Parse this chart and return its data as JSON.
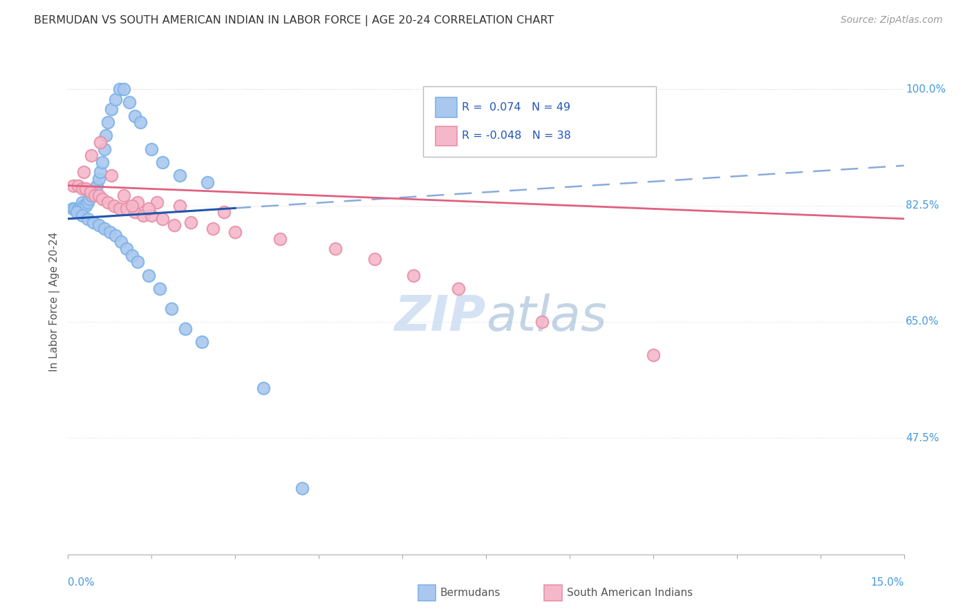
{
  "title": "BERMUDAN VS SOUTH AMERICAN INDIAN IN LABOR FORCE | AGE 20-24 CORRELATION CHART",
  "source": "Source: ZipAtlas.com",
  "ylabel": "In Labor Force | Age 20-24",
  "yticks": [
    47.5,
    65.0,
    82.5,
    100.0
  ],
  "ytick_labels": [
    "47.5%",
    "65.0%",
    "82.5%",
    "100.0%"
  ],
  "xmin": 0.0,
  "xmax": 15.0,
  "ymin": 30.0,
  "ymax": 106.0,
  "bermudans_color": "#aac8ee",
  "bermudans_edge": "#7eb3e8",
  "south_american_color": "#f5b8cb",
  "south_american_edge": "#e890a8",
  "trend_blue_color": "#2255aa",
  "trend_blue_dash_color": "#88aadd",
  "trend_pink_color": "#e06080",
  "watermark_color": "#ccddf5",
  "legend_box_color": "#dddddd",
  "legend_text_color": "#2255bb",
  "axis_label_color": "#4499dd",
  "title_color": "#333333",
  "source_color": "#999999",
  "grid_color": "#dddddd",
  "bottom_label_color": "#555555",
  "blue_trend_y0": 80.5,
  "blue_trend_y1": 88.5,
  "pink_trend_y0": 85.5,
  "pink_trend_y1": 80.5,
  "bx": [
    0.08,
    0.12,
    0.18,
    0.22,
    0.25,
    0.28,
    0.32,
    0.35,
    0.38,
    0.42,
    0.45,
    0.48,
    0.52,
    0.55,
    0.58,
    0.62,
    0.65,
    0.68,
    0.72,
    0.78,
    0.85,
    0.92,
    1.0,
    1.1,
    1.2,
    1.3,
    1.5,
    1.7,
    2.0,
    2.5,
    0.15,
    0.25,
    0.35,
    0.45,
    0.55,
    0.65,
    0.75,
    0.85,
    0.95,
    1.05,
    1.15,
    1.25,
    1.45,
    1.65,
    1.85,
    2.1,
    2.4,
    3.5,
    4.2
  ],
  "by": [
    82.0,
    82.0,
    82.0,
    82.0,
    83.0,
    82.5,
    82.5,
    83.0,
    83.5,
    84.0,
    84.5,
    85.0,
    85.5,
    86.5,
    87.5,
    89.0,
    91.0,
    93.0,
    95.0,
    97.0,
    98.5,
    100.0,
    100.0,
    98.0,
    96.0,
    95.0,
    91.0,
    89.0,
    87.0,
    86.0,
    81.5,
    81.0,
    80.5,
    80.0,
    79.5,
    79.0,
    78.5,
    78.0,
    77.0,
    76.0,
    75.0,
    74.0,
    72.0,
    70.0,
    67.0,
    64.0,
    62.0,
    55.0,
    40.0
  ],
  "sx": [
    0.1,
    0.18,
    0.25,
    0.32,
    0.4,
    0.48,
    0.55,
    0.62,
    0.72,
    0.82,
    0.92,
    1.05,
    1.2,
    1.35,
    1.5,
    1.7,
    1.9,
    2.2,
    2.6,
    3.0,
    0.28,
    0.42,
    0.58,
    0.78,
    1.0,
    1.25,
    1.6,
    2.0,
    2.8,
    3.8,
    4.8,
    5.5,
    6.2,
    7.0,
    8.5,
    10.5,
    1.15,
    1.45
  ],
  "sy": [
    85.5,
    85.5,
    85.0,
    85.0,
    84.5,
    84.0,
    84.0,
    83.5,
    83.0,
    82.5,
    82.0,
    82.0,
    81.5,
    81.0,
    81.0,
    80.5,
    79.5,
    80.0,
    79.0,
    78.5,
    87.5,
    90.0,
    92.0,
    87.0,
    84.0,
    83.0,
    83.0,
    82.5,
    81.5,
    77.5,
    76.0,
    74.5,
    72.0,
    70.0,
    65.0,
    60.0,
    82.5,
    82.0
  ]
}
